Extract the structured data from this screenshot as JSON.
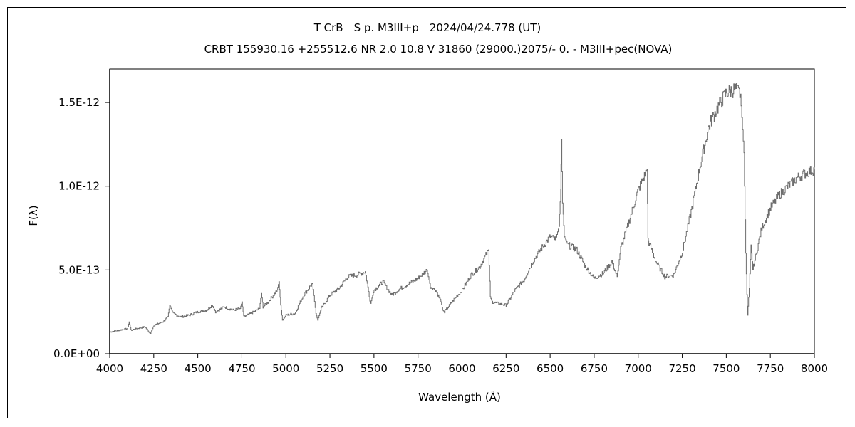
{
  "chart_data": {
    "type": "line",
    "title": "T CrB　S p. M3III+p　2024/04/24.778 (UT)",
    "subtitle": "CRBT 155930.16 +255512.6  NR 2.0 10.8  V 31860 (29000.)2075/-  0. - M3III+pec(NOVA)",
    "xlabel": "Wavelength (Å)",
    "ylabel": "F(λ)",
    "xlim": [
      4000,
      8000
    ],
    "ylim": [
      0,
      1.7e-12
    ],
    "x_ticks": [
      4000,
      4250,
      4500,
      4750,
      5000,
      5250,
      5500,
      5750,
      6000,
      6250,
      6500,
      6750,
      7000,
      7250,
      7500,
      7750,
      8000
    ],
    "x_tick_labels": [
      "4000",
      "4250",
      "4500",
      "4750",
      "5000",
      "5250",
      "5500",
      "5750",
      "6000",
      "6250",
      "6500",
      "6750",
      "7000",
      "7250",
      "7500",
      "7750",
      "8000"
    ],
    "y_ticks": [
      0,
      5e-13,
      1e-12,
      1.5e-12
    ],
    "y_tick_labels": [
      "0.0E+00",
      "5.0E-13",
      "1.0E-12",
      "1.5E-12"
    ],
    "grid": false,
    "legend": "none",
    "line_color": "#6e6e6e",
    "series": [
      {
        "x": [
          4000,
          4050,
          4100,
          4110,
          4120,
          4150,
          4200,
          4230,
          4250,
          4300,
          4330,
          4340,
          4360,
          4400,
          4450,
          4500,
          4550,
          4580,
          4600,
          4650,
          4700,
          4740,
          4750,
          4760,
          4800,
          4850,
          4860,
          4870,
          4900,
          4950,
          4960,
          4970,
          4980,
          5000,
          5050,
          5100,
          5150,
          5170,
          5180,
          5200,
          5250,
          5300,
          5350,
          5400,
          5450,
          5480,
          5500,
          5550,
          5600,
          5650,
          5700,
          5750,
          5800,
          5820,
          5850,
          5880,
          5890,
          5900,
          5950,
          6000,
          6050,
          6100,
          6150,
          6160,
          6170,
          6200,
          6250,
          6300,
          6350,
          6400,
          6450,
          6500,
          6530,
          6550,
          6560,
          6563,
          6570,
          6580,
          6600,
          6650,
          6700,
          6750,
          6800,
          6850,
          6880,
          6900,
          6950,
          7000,
          7050,
          7055,
          7060,
          7100,
          7150,
          7200,
          7250,
          7300,
          7350,
          7400,
          7450,
          7500,
          7550,
          7580,
          7600,
          7610,
          7620,
          7630,
          7640,
          7650,
          7700,
          7750,
          7800,
          7850,
          7900,
          7950,
          8000
        ],
        "y": [
          1.3e-13,
          1.4e-13,
          1.5e-13,
          1.9e-13,
          1.4e-13,
          1.5e-13,
          1.6e-13,
          1.2e-13,
          1.7e-13,
          1.9e-13,
          2.2e-13,
          2.9e-13,
          2.4e-13,
          2.2e-13,
          2.3e-13,
          2.5e-13,
          2.6e-13,
          2.9e-13,
          2.5e-13,
          2.8e-13,
          2.6e-13,
          2.7e-13,
          3.1e-13,
          2.2e-13,
          2.4e-13,
          2.7e-13,
          3.6e-13,
          2.8e-13,
          3.1e-13,
          3.8e-13,
          4.3e-13,
          2.9e-13,
          2e-13,
          2.3e-13,
          2.4e-13,
          3.5e-13,
          4.2e-13,
          2.4e-13,
          2e-13,
          2.7e-13,
          3.5e-13,
          3.9e-13,
          4.6e-13,
          4.7e-13,
          4.9e-13,
          3e-13,
          3.8e-13,
          4.3e-13,
          3.5e-13,
          3.9e-13,
          4.2e-13,
          4.5e-13,
          5e-13,
          4e-13,
          3.8e-13,
          3.1e-13,
          2.6e-13,
          2.5e-13,
          3.2e-13,
          3.8e-13,
          4.7e-13,
          5.2e-13,
          6.2e-13,
          3.4e-13,
          3.1e-13,
          3e-13,
          2.9e-13,
          3.8e-13,
          4.4e-13,
          5.5e-13,
          6.3e-13,
          7e-13,
          6.8e-13,
          7.6e-13,
          9.8e-13,
          1.28e-12,
          9e-13,
          7e-13,
          6.5e-13,
          6.2e-13,
          5.2e-13,
          4.5e-13,
          4.8e-13,
          5.5e-13,
          4.6e-13,
          6.3e-13,
          8e-13,
          9.8e-13,
          1.1e-12,
          6.9e-13,
          6.6e-13,
          5.5e-13,
          4.6e-13,
          4.7e-13,
          6.1e-13,
          8.5e-13,
          1.12e-12,
          1.36e-12,
          1.47e-12,
          1.56e-12,
          1.58e-12,
          1.55e-12,
          1.2e-12,
          6e-13,
          2.3e-13,
          3.9e-13,
          6.5e-13,
          5e-13,
          7.5e-13,
          8.7e-13,
          9.5e-13,
          1e-12,
          1.05e-12,
          1.08e-12,
          1.1e-12
        ]
      }
    ]
  }
}
